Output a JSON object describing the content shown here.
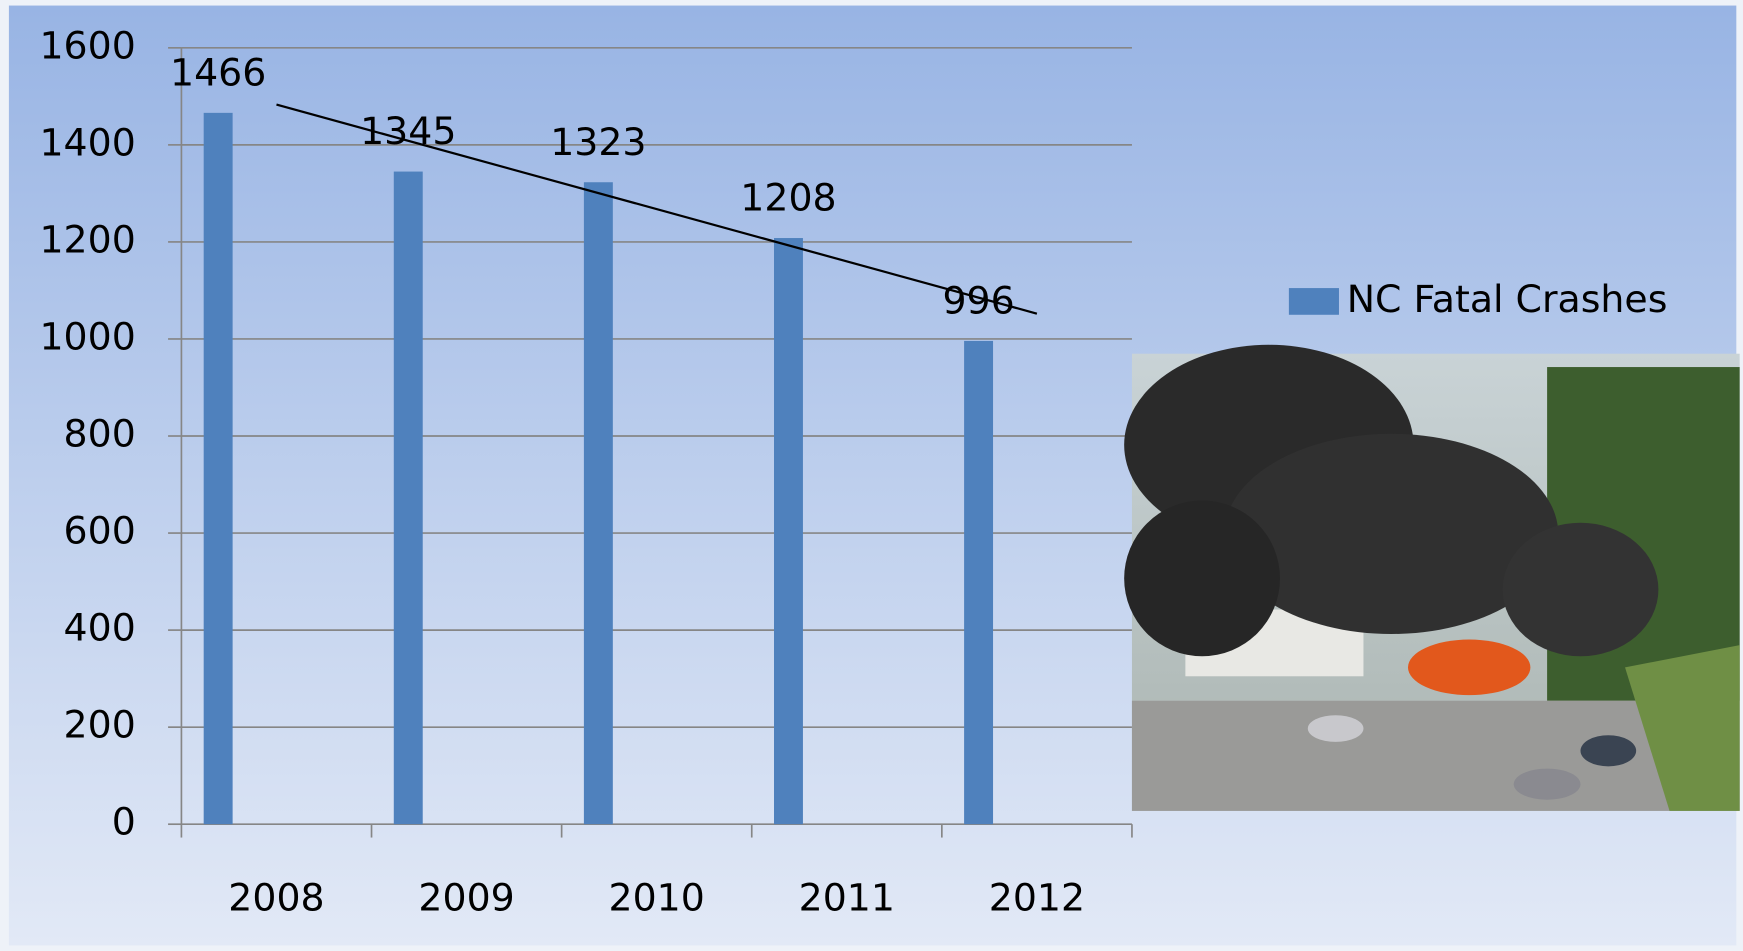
{
  "chart_data": {
    "type": "bar",
    "categories": [
      "2008",
      "2009",
      "2010",
      "2011",
      "2012"
    ],
    "series": [
      {
        "name": "NC Fatal Crashes",
        "color": "#4f81bd",
        "values": [
          1466,
          1345,
          1323,
          1208,
          996
        ]
      }
    ],
    "ylim": [
      0,
      1600
    ],
    "yticks": [
      0,
      200,
      400,
      600,
      800,
      1000,
      1200,
      1400,
      1600
    ],
    "grid": true,
    "legend": "right",
    "trendline": "linear",
    "data_labels": true
  }
}
